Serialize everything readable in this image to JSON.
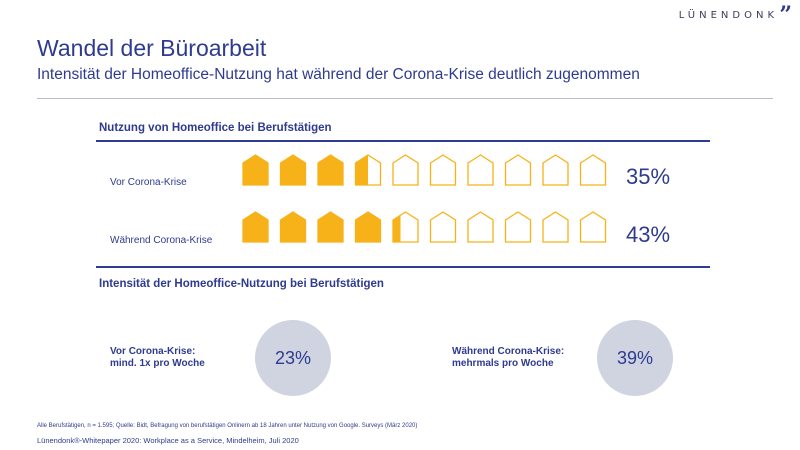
{
  "brand": {
    "name": "LÜNENDONK",
    "mark": "”"
  },
  "header": {
    "title": "Wandel der Büroarbeit",
    "subtitle": "Intensität der Homeoffice-Nutzung hat während der Corona-Krise deutlich zugenommen"
  },
  "colors": {
    "accent": "#2e3b8f",
    "house_fill": "#f7b21a",
    "circle_fill": "#cfd4e0"
  },
  "chart_data": [
    {
      "type": "pictogram",
      "title": "Nutzung von Homeoffice bei Berufstätigen",
      "icon": "house-icon",
      "icons_total": 10,
      "unit": "%",
      "categories": [
        "Vor Corona-Krise",
        "Während Corona-Krise"
      ],
      "values": [
        35,
        43
      ],
      "value_labels": [
        "35%",
        "43%"
      ]
    },
    {
      "type": "bubble",
      "title": "Intensität der Homeoffice-Nutzung bei Berufstätigen",
      "categories": [
        [
          "Vor Corona-Krise:",
          "mind. 1x pro Woche"
        ],
        [
          "Während Corona-Krise:",
          "mehrmals pro Woche"
        ]
      ],
      "values": [
        23,
        39
      ],
      "value_labels": [
        "23%",
        "39%"
      ]
    }
  ],
  "footer": {
    "footnote": "Alle Berufstätigen, n = 1.595; Quelle: Bidt, Befragung von berufstätigen Onlinern ab 18 Jahren unter Nutzung von Google. Surveys (März 2020)",
    "source": "Lünendonk®-Whitepaper 2020: Workplace as a Service, Mindelheim, Juli 2020"
  }
}
